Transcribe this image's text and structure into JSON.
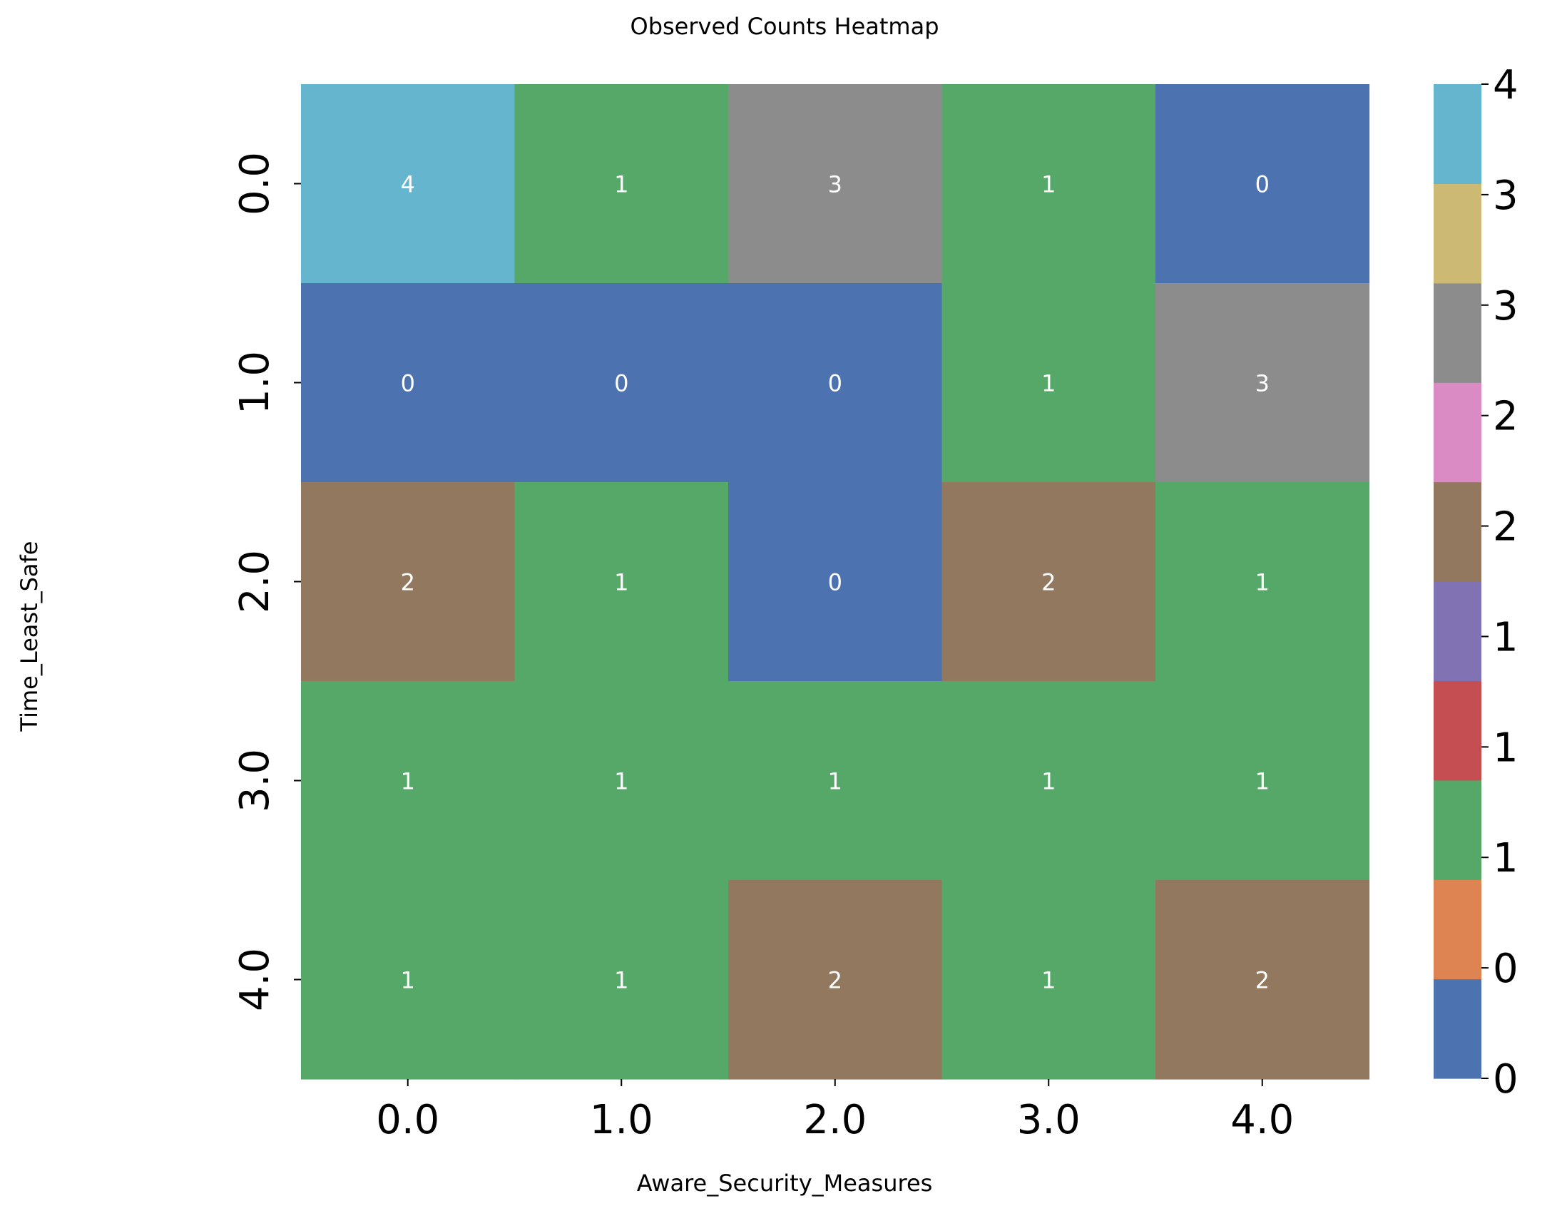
{
  "chart_data": {
    "type": "heatmap",
    "title": "Observed Counts Heatmap",
    "xlabel": "Aware_Security_Measures",
    "ylabel": "Time_Least_Safe",
    "x_categories": [
      "0.0",
      "1.0",
      "2.0",
      "3.0",
      "4.0"
    ],
    "y_categories": [
      "0.0",
      "1.0",
      "2.0",
      "3.0",
      "4.0"
    ],
    "values": [
      [
        4,
        1,
        3,
        1,
        0
      ],
      [
        0,
        0,
        0,
        1,
        3
      ],
      [
        2,
        1,
        0,
        2,
        1
      ],
      [
        1,
        1,
        1,
        1,
        1
      ],
      [
        1,
        1,
        2,
        1,
        2
      ]
    ],
    "annotations": [
      [
        "4",
        "1",
        "3",
        "1",
        "0"
      ],
      [
        "0",
        "0",
        "0",
        "1",
        "3"
      ],
      [
        "2",
        "1",
        "0",
        "2",
        "1"
      ],
      [
        "1",
        "1",
        "1",
        "1",
        "1"
      ],
      [
        "1",
        "1",
        "2",
        "1",
        "2"
      ]
    ],
    "value_range": [
      0,
      4
    ],
    "colorbar": {
      "colors": [
        "#4c72b0",
        "#dd8452",
        "#55a868",
        "#c44e52",
        "#8172b3",
        "#937860",
        "#da8bc3",
        "#8c8c8c",
        "#ccb974",
        "#64b5cd"
      ],
      "tick_labels": [
        "0",
        "0",
        "1",
        "1",
        "1",
        "2",
        "2",
        "3",
        "3",
        "4"
      ]
    },
    "grid": false
  }
}
